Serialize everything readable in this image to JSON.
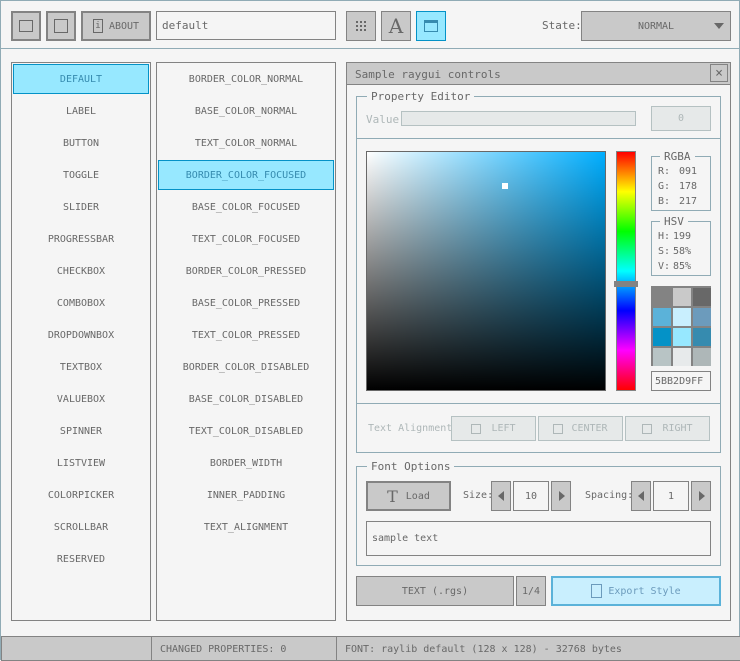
{
  "toolbar": {
    "about_label": "ABOUT",
    "style_name": "default",
    "state_label": "State:",
    "state_value": "NORMAL"
  },
  "controls": [
    "DEFAULT",
    "LABEL",
    "BUTTON",
    "TOGGLE",
    "SLIDER",
    "PROGRESSBAR",
    "CHECKBOX",
    "COMBOBOX",
    "DROPDOWNBOX",
    "TEXTBOX",
    "VALUEBOX",
    "SPINNER",
    "LISTVIEW",
    "COLORPICKER",
    "SCROLLBAR",
    "RESERVED"
  ],
  "properties": [
    "BORDER_COLOR_NORMAL",
    "BASE_COLOR_NORMAL",
    "TEXT_COLOR_NORMAL",
    "BORDER_COLOR_FOCUSED",
    "BASE_COLOR_FOCUSED",
    "TEXT_COLOR_FOCUSED",
    "BORDER_COLOR_PRESSED",
    "BASE_COLOR_PRESSED",
    "TEXT_COLOR_PRESSED",
    "BORDER_COLOR_DISABLED",
    "BASE_COLOR_DISABLED",
    "TEXT_COLOR_DISABLED",
    "BORDER_WIDTH",
    "INNER_PADDING",
    "TEXT_ALIGNMENT"
  ],
  "selected_control": 0,
  "selected_property": 3,
  "window": {
    "title": "Sample raygui controls",
    "close": "×"
  },
  "property_editor": {
    "title": "Property Editor",
    "value_label": "Value:",
    "value": "0"
  },
  "color": {
    "hue": 199,
    "saturation": 0.58,
    "value": 0.85,
    "rgba_title": "RGBA",
    "r_label": "R:",
    "r": "091",
    "g_label": "G:",
    "g": "178",
    "b_label": "B:",
    "b": "217",
    "hsv_title": "HSV",
    "h_label": "H:",
    "h": "199",
    "s_label": "S:",
    "s": "58%",
    "v_label": "V:",
    "v": "85%",
    "hex": "5BB2D9FF",
    "palette": [
      "#838383",
      "#c9c9c9",
      "#686868",
      "#5bb2d9",
      "#c9effe",
      "#6c9bbc",
      "#0492c7",
      "#97e8ff",
      "#368baf",
      "#b8c4c5",
      "#e7eaeb",
      "#aeb7b8"
    ]
  },
  "alignment": {
    "label": "Text Alignment:",
    "left": "LEFT",
    "center": "CENTER",
    "right": "RIGHT"
  },
  "font_options": {
    "title": "Font Options",
    "load": "Load",
    "size_label": "Size:",
    "size": "10",
    "spacing_label": "Spacing:",
    "spacing": "1",
    "sample_text": "sample text"
  },
  "bottom": {
    "format": "TEXT (.rgs)",
    "page": "1/4",
    "export": "Export Style"
  },
  "status": {
    "left": "",
    "changed": "CHANGED PROPERTIES: 0",
    "font": "FONT: raylib default (128 x 128) - 32768 bytes"
  }
}
